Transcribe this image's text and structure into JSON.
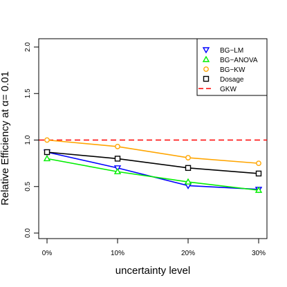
{
  "chart_data": {
    "type": "line",
    "title": "",
    "xlabel": "uncertainty level",
    "ylabel": "Relative Efficiency at  α= 0.01",
    "categories": [
      "0%",
      "10%",
      "20%",
      "30%"
    ],
    "ylim": [
      0,
      2
    ],
    "yticks": [
      0.0,
      0.5,
      1.0,
      1.5,
      2.0
    ],
    "ytick_labels": [
      "0.0",
      "0.5",
      "1.0",
      "1.5",
      "2.0"
    ],
    "grid": false,
    "legend_position": "top-right",
    "series": [
      {
        "name": "BG−LM",
        "values": [
          0.87,
          0.7,
          0.51,
          0.47
        ],
        "color": "#0000ff",
        "marker": "triangle-down"
      },
      {
        "name": "BG−ANOVA",
        "values": [
          0.8,
          0.66,
          0.55,
          0.46
        ],
        "color": "#00ee00",
        "marker": "triangle-up"
      },
      {
        "name": "BG−KW",
        "values": [
          1.0,
          0.93,
          0.81,
          0.75
        ],
        "color": "#ffa500",
        "marker": "circle"
      },
      {
        "name": "Dosage",
        "values": [
          0.87,
          0.8,
          0.7,
          0.64
        ],
        "color": "#000000",
        "marker": "square"
      }
    ],
    "reference_lines": [
      {
        "name": "GKW",
        "value": 1.0,
        "color": "#ff0000",
        "style": "dashed"
      }
    ]
  }
}
